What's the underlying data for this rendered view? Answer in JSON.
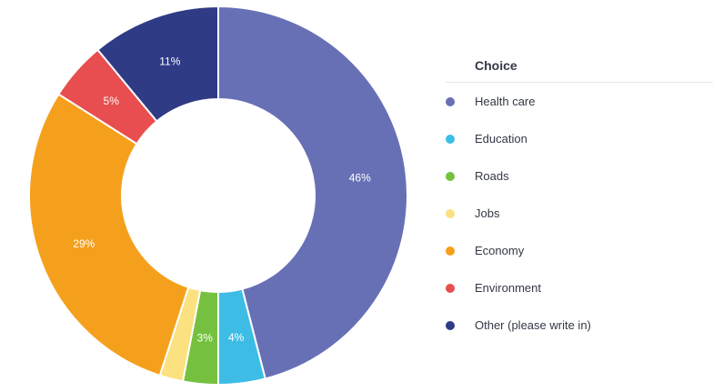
{
  "legend": {
    "header": "Choice"
  },
  "chart_data": {
    "type": "pie",
    "variant": "donut",
    "legend_position": "right",
    "categories": [
      "Health care",
      "Education",
      "Roads",
      "Jobs",
      "Economy",
      "Environment",
      "Other (please write in)"
    ],
    "values": [
      46,
      4,
      3,
      2,
      29,
      5,
      11
    ],
    "value_labels": [
      "46%",
      "4%",
      "3%",
      "",
      "29%",
      "5%",
      "11%"
    ],
    "colors": [
      "#6870b5",
      "#3dbde6",
      "#75c13f",
      "#fbe180",
      "#f5a01c",
      "#e84e4f",
      "#303b86"
    ]
  }
}
